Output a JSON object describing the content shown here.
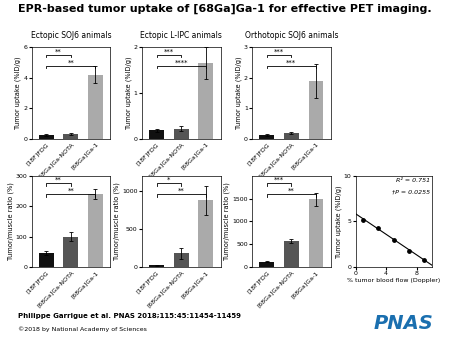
{
  "title": "EPR-based tumor uptake of [68Ga]Ga-1 for effective PET imaging.",
  "annotations": [
    {
      "text": "Philippe Garrigue et al. PNAS 2018;115:45:11454-11459"
    },
    {
      "text": "©2018 by National Academy of Sciences"
    },
    {
      "text": "PNAS",
      "color": "#1a6faf"
    }
  ],
  "chart_data": [
    {
      "type": "bar",
      "title": "Ectopic SOJ6 animals",
      "categories": [
        "[18F]FDG",
        "[68Ga]Ga-NOTA",
        "[68Ga]Ga-1"
      ],
      "values": [
        0.25,
        0.3,
        4.2
      ],
      "errors": [
        0.06,
        0.06,
        0.55
      ],
      "colors": [
        "#111111",
        "#555555",
        "#aaaaaa"
      ],
      "ylim": [
        0,
        6
      ],
      "yticks": [
        0,
        2,
        4,
        6
      ],
      "ylabel": "Tumor uptake (%ID/g)",
      "annotations": [
        {
          "text": "**",
          "from": "[18F]FDG",
          "to": "[68Ga]Ga-1"
        },
        {
          "text": "**",
          "from": "[18F]FDG",
          "to": "[68Ga]Ga-NOTA"
        }
      ]
    },
    {
      "type": "bar",
      "title": "Ectopic L-IPC animals",
      "categories": [
        "[18F]FDG",
        "[68Ga]Ga-NOTA",
        "[68Ga]Ga-1"
      ],
      "values": [
        0.18,
        0.22,
        1.65
      ],
      "errors": [
        0.04,
        0.05,
        0.35
      ],
      "colors": [
        "#111111",
        "#555555",
        "#aaaaaa"
      ],
      "ylim": [
        0,
        2
      ],
      "yticks": [
        0,
        1,
        2
      ],
      "ylabel": "Tumor uptake (%ID/g)",
      "annotations": [
        {
          "text": "****",
          "from": "[18F]FDG",
          "to": "[68Ga]Ga-1"
        },
        {
          "text": "***",
          "from": "[18F]FDG",
          "to": "[68Ga]Ga-NOTA"
        }
      ]
    },
    {
      "type": "bar",
      "title": "Orthotopic SOJ6 animals",
      "categories": [
        "[18F]FDG",
        "[68Ga]Ga-NOTA",
        "[68Ga]Ga-1"
      ],
      "values": [
        0.12,
        0.18,
        1.9
      ],
      "errors": [
        0.03,
        0.03,
        0.55
      ],
      "colors": [
        "#111111",
        "#555555",
        "#aaaaaa"
      ],
      "ylim": [
        0,
        3
      ],
      "yticks": [
        0,
        1,
        2,
        3
      ],
      "ylabel": "Tumor uptake (%ID/g)",
      "annotations": [
        {
          "text": "***",
          "from": "[18F]FDG",
          "to": "[68Ga]Ga-1"
        },
        {
          "text": "***",
          "from": "[18F]FDG",
          "to": "[68Ga]Ga-NOTA"
        }
      ]
    },
    {
      "type": "bar",
      "categories": [
        "[18F]FDG",
        "[68Ga]Ga-NOTA",
        "[68Ga]Ga-1"
      ],
      "values": [
        45,
        100,
        240
      ],
      "errors": [
        7,
        15,
        18
      ],
      "colors": [
        "#111111",
        "#555555",
        "#aaaaaa"
      ],
      "ylim": [
        0,
        300
      ],
      "yticks": [
        0,
        100,
        200,
        300
      ],
      "ylabel": "Tumor/muscle ratio (%)",
      "annotations": [
        {
          "text": "**",
          "from": "[18F]FDG",
          "to": "[68Ga]Ga-1"
        },
        {
          "text": "**",
          "from": "[18F]FDG",
          "to": "[68Ga]Ga-NOTA"
        }
      ]
    },
    {
      "type": "bar",
      "categories": [
        "[18F]FDG",
        "[68Ga]Ga-NOTA",
        "[68Ga]Ga-1"
      ],
      "values": [
        25,
        180,
        880
      ],
      "errors": [
        8,
        75,
        190
      ],
      "colors": [
        "#111111",
        "#555555",
        "#aaaaaa"
      ],
      "ylim": [
        0,
        1200
      ],
      "yticks": [
        0,
        500,
        1000
      ],
      "ylabel": "Tumor/muscle ratio (%)",
      "annotations": [
        {
          "text": "**",
          "from": "[18F]FDG",
          "to": "[68Ga]Ga-1"
        },
        {
          "text": "*",
          "from": "[18F]FDG",
          "to": "[68Ga]Ga-NOTA"
        }
      ]
    },
    {
      "type": "bar",
      "categories": [
        "[18F]FDG",
        "[68Ga]Ga-NOTA",
        "[68Ga]Ga-1"
      ],
      "values": [
        120,
        580,
        1480
      ],
      "errors": [
        18,
        45,
        140
      ],
      "colors": [
        "#111111",
        "#555555",
        "#aaaaaa"
      ],
      "ylim": [
        0,
        2000
      ],
      "yticks": [
        0,
        500,
        1000,
        1500
      ],
      "ylabel": "Tumor/muscle ratio (%)",
      "annotations": [
        {
          "text": "**",
          "from": "[18F]FDG",
          "to": "[68Ga]Ga-1"
        },
        {
          "text": "***",
          "from": "[18F]FDG",
          "to": "[68Ga]Ga-NOTA"
        }
      ]
    },
    {
      "type": "scatter",
      "series": [
        {
          "type": "scatter",
          "x": [
            1,
            3,
            5,
            7,
            9
          ],
          "values": [
            5.2,
            4.3,
            3.0,
            1.8,
            0.8
          ],
          "color": "#000000"
        },
        {
          "type": "line",
          "x": [
            0,
            10
          ],
          "values": [
            5.845,
            0.195
          ],
          "color": "#000000"
        }
      ],
      "xlim": [
        0,
        10
      ],
      "xticks": [
        0,
        4,
        8
      ],
      "ylim": [
        0,
        10
      ],
      "yticks": [
        0,
        5,
        10
      ],
      "xlabel": "% tumor blood flow (Doppler)",
      "ylabel": "Tumor uptake (%ID/g)",
      "annotations": [
        {
          "text": "R² = 0.751"
        },
        {
          "text": "†P = 0.0255"
        }
      ]
    }
  ]
}
